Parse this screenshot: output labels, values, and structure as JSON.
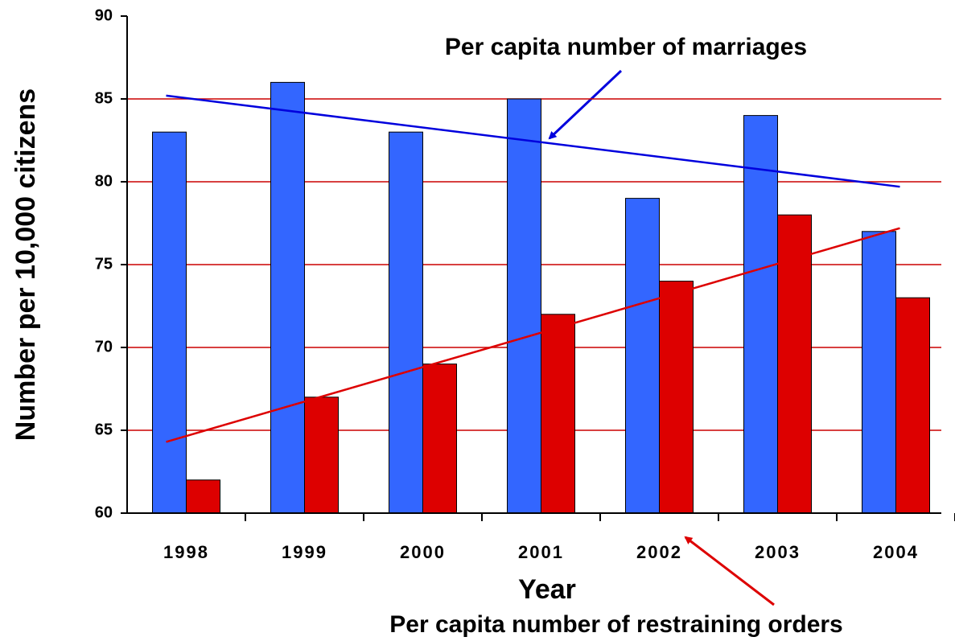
{
  "chart_data": {
    "type": "bar",
    "x_label": "Year",
    "y_label": "Number per 10,000 citizens",
    "annotations": [
      "Per capita number of marriages",
      "Per capita number of restraining orders"
    ],
    "categories": [
      "1998",
      "1999",
      "2000",
      "2001",
      "2002",
      "2003",
      "2004"
    ],
    "series": [
      {
        "color": "#3366ff",
        "values": [
          83,
          86,
          83,
          85,
          79,
          84,
          77
        ],
        "trend": [
          85.2,
          79.7
        ],
        "trend_color": "#0000dd"
      },
      {
        "color": "#dd0000",
        "values": [
          62,
          67,
          69,
          72,
          74,
          78,
          73
        ],
        "trend": [
          64.3,
          77.2
        ],
        "trend_color": "#dd0000"
      }
    ],
    "ylim": [
      60,
      90
    ],
    "yticks": [
      60,
      65,
      70,
      75,
      80,
      85,
      90
    ],
    "grid": true,
    "grid_color": "#cc0000"
  }
}
